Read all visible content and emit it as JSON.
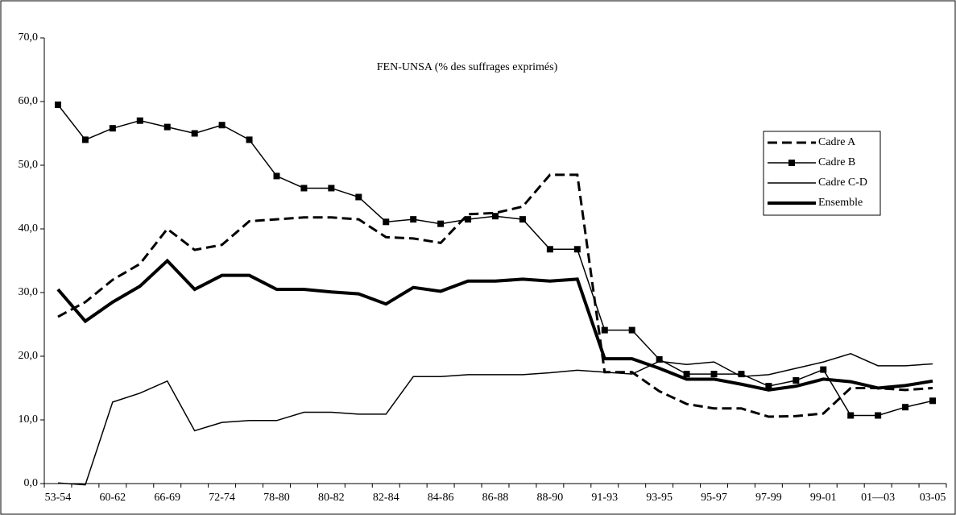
{
  "chart_data": {
    "type": "line",
    "title": "FEN-UNSA (% des suffrages exprimés)",
    "categories": [
      "53-54",
      null,
      "60-62",
      null,
      "66-69",
      null,
      "72-74",
      null,
      "78-80",
      null,
      "80-82",
      null,
      "82-84",
      null,
      "84-86",
      null,
      "86-88",
      null,
      "88-90",
      null,
      "91-93",
      null,
      "93-95",
      null,
      "95-97",
      null,
      "97-99",
      null,
      "99-01",
      null,
      "01—03",
      null,
      "03-05"
    ],
    "series": [
      {
        "name": "Cadre A",
        "color": "#000000",
        "width": 3,
        "dash": true,
        "marker": null,
        "values": [
          26.2,
          28.5,
          32,
          34.5,
          40,
          36.7,
          37.5,
          41.2,
          41.5,
          41.8,
          41.8,
          41.5,
          38.7,
          38.5,
          37.8,
          42.3,
          42.5,
          43.5,
          48.5,
          48.5,
          17.5,
          17.5,
          14.5,
          12.5,
          11.8,
          11.8,
          10.5,
          10.6,
          11,
          15,
          15,
          14.7,
          15
        ]
      },
      {
        "name": "Cadre B",
        "color": "#000000",
        "width": 1.5,
        "dash": false,
        "marker": "square",
        "values": [
          59.5,
          54,
          55.8,
          57,
          56,
          55,
          56.3,
          54,
          48.3,
          46.4,
          46.4,
          45,
          41.1,
          41.5,
          40.8,
          41.5,
          42,
          41.5,
          36.8,
          36.8,
          24.1,
          24.1,
          19.5,
          17.2,
          17.2,
          17.2,
          15.3,
          16.2,
          17.9,
          10.7,
          10.7,
          12,
          13
        ]
      },
      {
        "name": "Cadre C-D",
        "color": "#000000",
        "width": 1.5,
        "dash": false,
        "marker": null,
        "values": [
          0.1,
          -0.2,
          12.8,
          14.2,
          16.1,
          8.3,
          9.6,
          9.9,
          9.9,
          11.2,
          11.2,
          10.9,
          10.9,
          16.8,
          16.8,
          17.1,
          17.1,
          17.1,
          17.4,
          17.8,
          17.5,
          17.2,
          19.2,
          18.7,
          19.1,
          16.8,
          17.1,
          18.1,
          19.1,
          20.4,
          18.5,
          18.5,
          18.8
        ]
      },
      {
        "name": "Ensemble",
        "color": "#000000",
        "width": 4,
        "dash": false,
        "marker": null,
        "values": [
          30.5,
          25.5,
          28.5,
          31,
          35,
          30.5,
          32.7,
          32.7,
          30.5,
          30.5,
          30.1,
          29.8,
          28.2,
          30.8,
          30.2,
          31.8,
          31.8,
          32.1,
          31.8,
          32.1,
          19.6,
          19.6,
          18.1,
          16.4,
          16.4,
          15.6,
          14.7,
          15.3,
          16.4,
          16,
          15,
          15.4,
          16.1
        ]
      }
    ],
    "ylim": [
      0,
      70
    ],
    "yticks": [
      {
        "value": 0,
        "label": "0,0"
      },
      {
        "value": 10,
        "label": "10,0"
      },
      {
        "value": 20,
        "label": "20,0"
      },
      {
        "value": 30,
        "label": "30,0"
      },
      {
        "value": 40,
        "label": "40,0"
      },
      {
        "value": 50,
        "label": "50,0"
      },
      {
        "value": 60,
        "label": "60,0"
      },
      {
        "value": 70,
        "label": "70,0"
      }
    ],
    "legend": "upper right"
  }
}
